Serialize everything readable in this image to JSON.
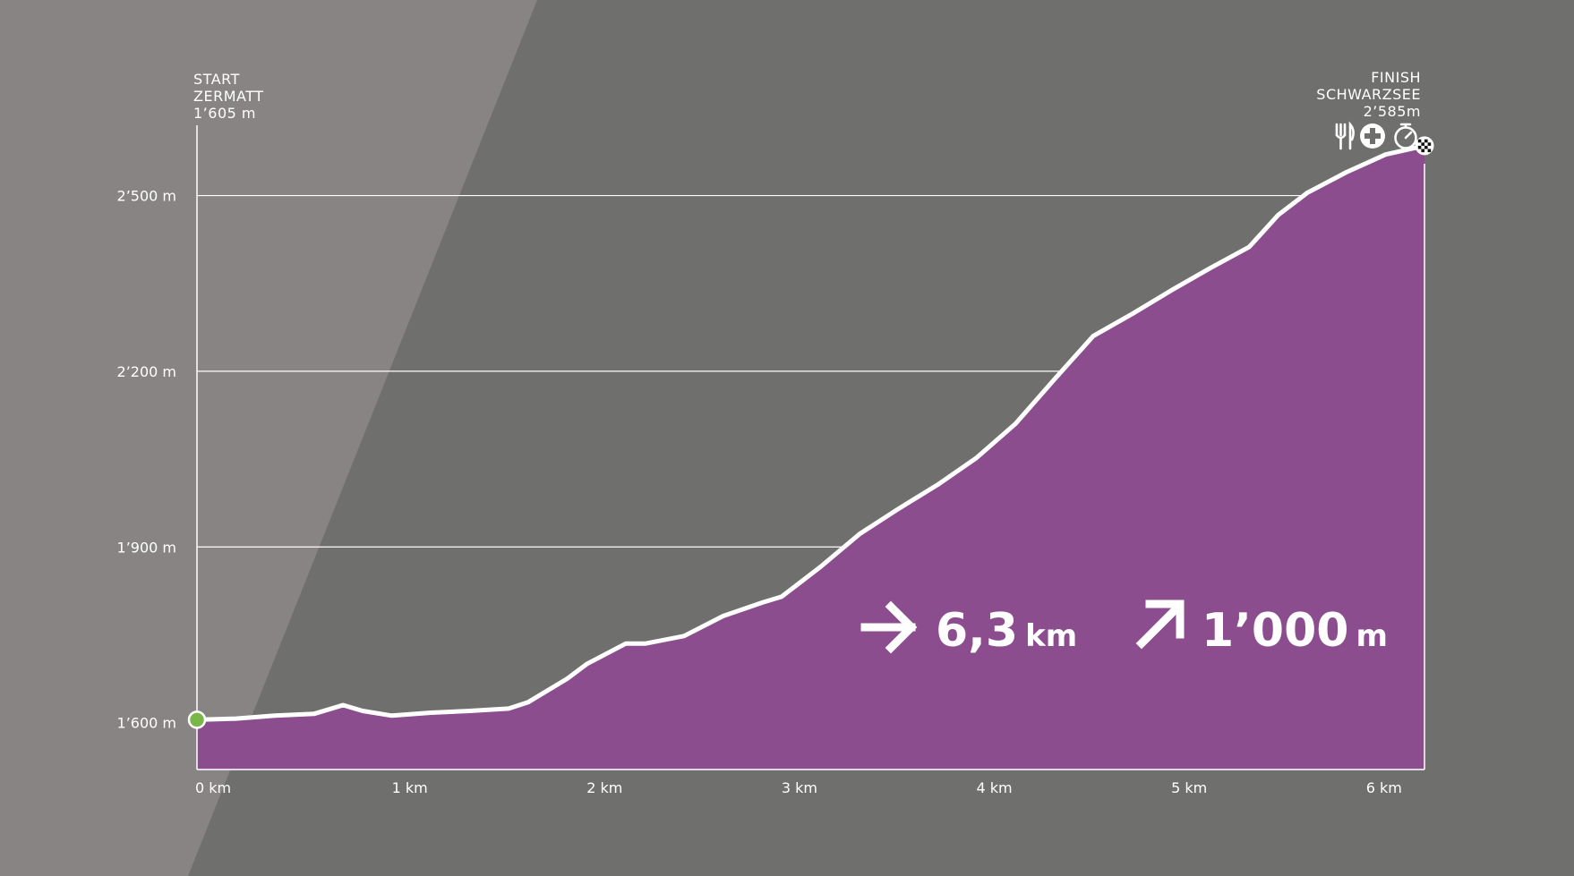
{
  "start": {
    "title": "START",
    "place": "ZERMATT",
    "elevation": "1’605 m"
  },
  "finish": {
    "title": "FINISH",
    "place": "SCHWARZSEE",
    "elevation": "2’585m"
  },
  "finish_icons": [
    "fork-knife-icon",
    "first-aid-cross-icon",
    "stopwatch-icon"
  ],
  "stats": {
    "distance_value": "6,3",
    "distance_unit": "km",
    "ascent_value": "1’000",
    "ascent_unit": "m"
  },
  "colors": {
    "background": "#6f6f6e",
    "light_band": "#878483",
    "profile_fill": "#8b4d8e",
    "line": "#ffffff",
    "start_marker": "#7ab648"
  },
  "chart_data": {
    "type": "area",
    "x_unit": "km",
    "y_unit": "m",
    "xlim": [
      0,
      6.3
    ],
    "ylim": [
      1520,
      2620
    ],
    "x_ticks": [
      {
        "value": 0,
        "label": "0 km"
      },
      {
        "value": 1,
        "label": "1 km"
      },
      {
        "value": 2,
        "label": "2 km"
      },
      {
        "value": 3,
        "label": "3 km"
      },
      {
        "value": 4,
        "label": "4 km"
      },
      {
        "value": 5,
        "label": "5 km"
      },
      {
        "value": 6,
        "label": "6 km"
      }
    ],
    "y_ticks": [
      {
        "value": 1600,
        "label": "1’600 m"
      },
      {
        "value": 1900,
        "label": "1’900 m"
      },
      {
        "value": 2200,
        "label": "2’200 m"
      },
      {
        "value": 2500,
        "label": "2’500 m"
      }
    ],
    "grid": "horizontal",
    "series": [
      {
        "x": [
          0,
          0.2,
          0.4,
          0.6,
          0.75,
          0.85,
          1.0,
          1.2,
          1.4,
          1.6,
          1.7,
          1.9,
          2.0,
          2.2,
          2.3,
          2.5,
          2.7,
          2.9,
          3.0,
          3.2,
          3.4,
          3.6,
          3.8,
          4.0,
          4.2,
          4.4,
          4.6,
          4.8,
          5.0,
          5.2,
          5.4,
          5.55,
          5.7,
          5.9,
          6.1,
          6.3
        ],
        "y": [
          1605,
          1607,
          1612,
          1615,
          1630,
          1620,
          1612,
          1617,
          1620,
          1624,
          1635,
          1675,
          1700,
          1735,
          1735,
          1748,
          1782,
          1805,
          1815,
          1866,
          1922,
          1965,
          2006,
          2052,
          2110,
          2186,
          2260,
          2298,
          2338,
          2376,
          2412,
          2467,
          2505,
          2540,
          2570,
          2585
        ]
      }
    ]
  }
}
